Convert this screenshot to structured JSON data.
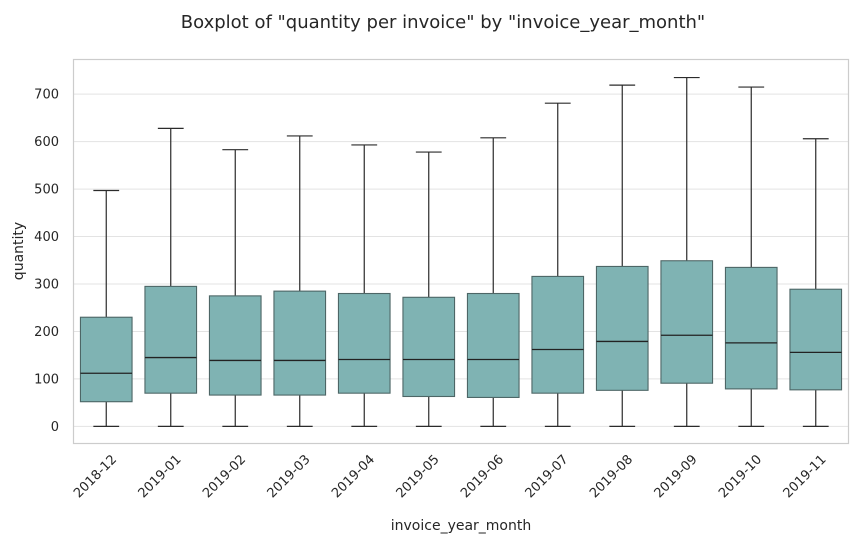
{
  "chart_data": {
    "type": "boxplot",
    "title": "Boxplot of \"quantity per invoice\" by \"invoice_year_month\"",
    "xlabel": "invoice_year_month",
    "ylabel": "quantity",
    "ylim": [
      -35,
      772
    ],
    "yticks": [
      0,
      100,
      200,
      300,
      400,
      500,
      600,
      700
    ],
    "grid": "horizontal",
    "box_color": "#7fb3b3",
    "edge_color": "#2b2b2b",
    "categories": [
      "2018-12",
      "2019-01",
      "2019-02",
      "2019-03",
      "2019-04",
      "2019-05",
      "2019-06",
      "2019-07",
      "2019-08",
      "2019-09",
      "2019-10",
      "2019-11"
    ],
    "boxes": [
      {
        "min": 0,
        "q1": 52,
        "median": 112,
        "q3": 230,
        "max": 497
      },
      {
        "min": 0,
        "q1": 70,
        "median": 145,
        "q3": 295,
        "max": 628
      },
      {
        "min": 0,
        "q1": 66,
        "median": 139,
        "q3": 275,
        "max": 583
      },
      {
        "min": 0,
        "q1": 66,
        "median": 139,
        "q3": 285,
        "max": 612
      },
      {
        "min": 0,
        "q1": 70,
        "median": 141,
        "q3": 280,
        "max": 593
      },
      {
        "min": 0,
        "q1": 63,
        "median": 141,
        "q3": 272,
        "max": 578
      },
      {
        "min": 0,
        "q1": 61,
        "median": 141,
        "q3": 280,
        "max": 608
      },
      {
        "min": 0,
        "q1": 70,
        "median": 162,
        "q3": 316,
        "max": 681
      },
      {
        "min": 0,
        "q1": 76,
        "median": 179,
        "q3": 337,
        "max": 719
      },
      {
        "min": 0,
        "q1": 91,
        "median": 192,
        "q3": 349,
        "max": 735
      },
      {
        "min": 0,
        "q1": 79,
        "median": 176,
        "q3": 335,
        "max": 715
      },
      {
        "min": 0,
        "q1": 77,
        "median": 156,
        "q3": 289,
        "max": 606
      }
    ]
  }
}
